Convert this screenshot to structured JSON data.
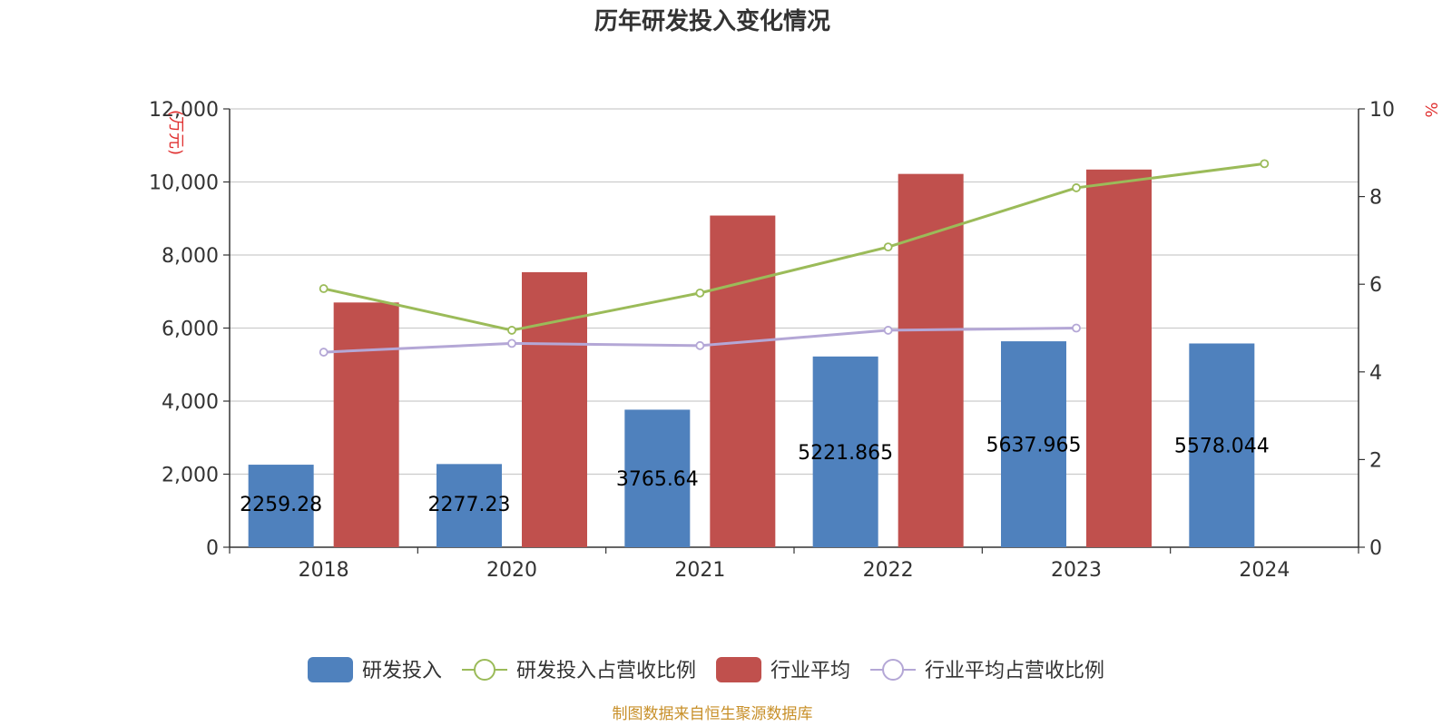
{
  "chart_data": {
    "type": "bar",
    "title": "历年研发投入变化情况",
    "categories": [
      "2018",
      "2020",
      "2021",
      "2022",
      "2023",
      "2024"
    ],
    "y_left": {
      "unit": "(万元)",
      "ylim": [
        0,
        12000
      ],
      "ticks": [
        0,
        2000,
        4000,
        6000,
        8000,
        10000,
        12000
      ],
      "tick_labels": [
        "0",
        "2,000",
        "4,000",
        "6,000",
        "8,000",
        "10,000",
        "12,000"
      ]
    },
    "y_right": {
      "unit": "%",
      "ylim": [
        0,
        10
      ],
      "ticks": [
        0,
        2,
        4,
        6,
        8,
        10
      ],
      "tick_labels": [
        "0",
        "2",
        "4",
        "6",
        "8",
        "10"
      ]
    },
    "series": [
      {
        "name": "研发投入",
        "kind": "bar",
        "axis": "left",
        "color": "#4f81bd",
        "values": [
          2259.28,
          2277.23,
          3765.64,
          5221.865,
          5637.965,
          5578.044
        ],
        "labels": [
          "2259.28",
          "2277.23",
          "3765.64",
          "5221.865",
          "5637.965",
          "5578.044"
        ]
      },
      {
        "name": "研发投入占营收比例",
        "kind": "line",
        "axis": "right",
        "color": "#9bbb59",
        "values": [
          5.9,
          4.95,
          5.8,
          6.85,
          8.2,
          8.75
        ]
      },
      {
        "name": "行业平均",
        "kind": "bar",
        "axis": "left",
        "color": "#c0504d",
        "values": [
          6700,
          7530,
          9080,
          10220,
          10340,
          null
        ]
      },
      {
        "name": "行业平均占营收比例",
        "kind": "line",
        "axis": "right",
        "color": "#b4a7d6",
        "values": [
          4.45,
          4.65,
          4.6,
          4.95,
          5.0,
          null
        ]
      }
    ],
    "legend_position": "bottom",
    "grid": true,
    "source": "制图数据来自恒生聚源数据库"
  }
}
